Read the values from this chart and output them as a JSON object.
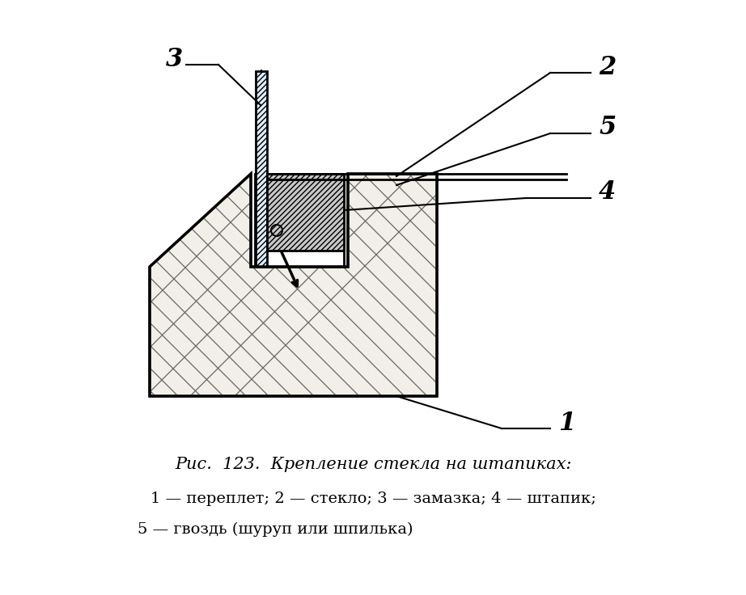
{
  "caption_line1": "Рис.  123.  Крепление стекла на штапиках:",
  "caption_line2": "1 — переплет; 2 — стекло; 3 — замазка; 4 — штапик;",
  "caption_line3": "5 — гвоздь (шуруп или шпилька)",
  "bg_color": "#ffffff",
  "line_color": "#000000",
  "label_1": "1",
  "label_2": "2",
  "label_3": "3",
  "label_4": "4",
  "label_5": "5",
  "label_fontsize": 22,
  "caption_fontsize": 15,
  "body_fontsize": 14,
  "wood_fill": "#f2efe8",
  "groove_fill": "#e0ddd6",
  "glass_fill": "#ddeeff",
  "штапик_fill": "#c8c8c8"
}
